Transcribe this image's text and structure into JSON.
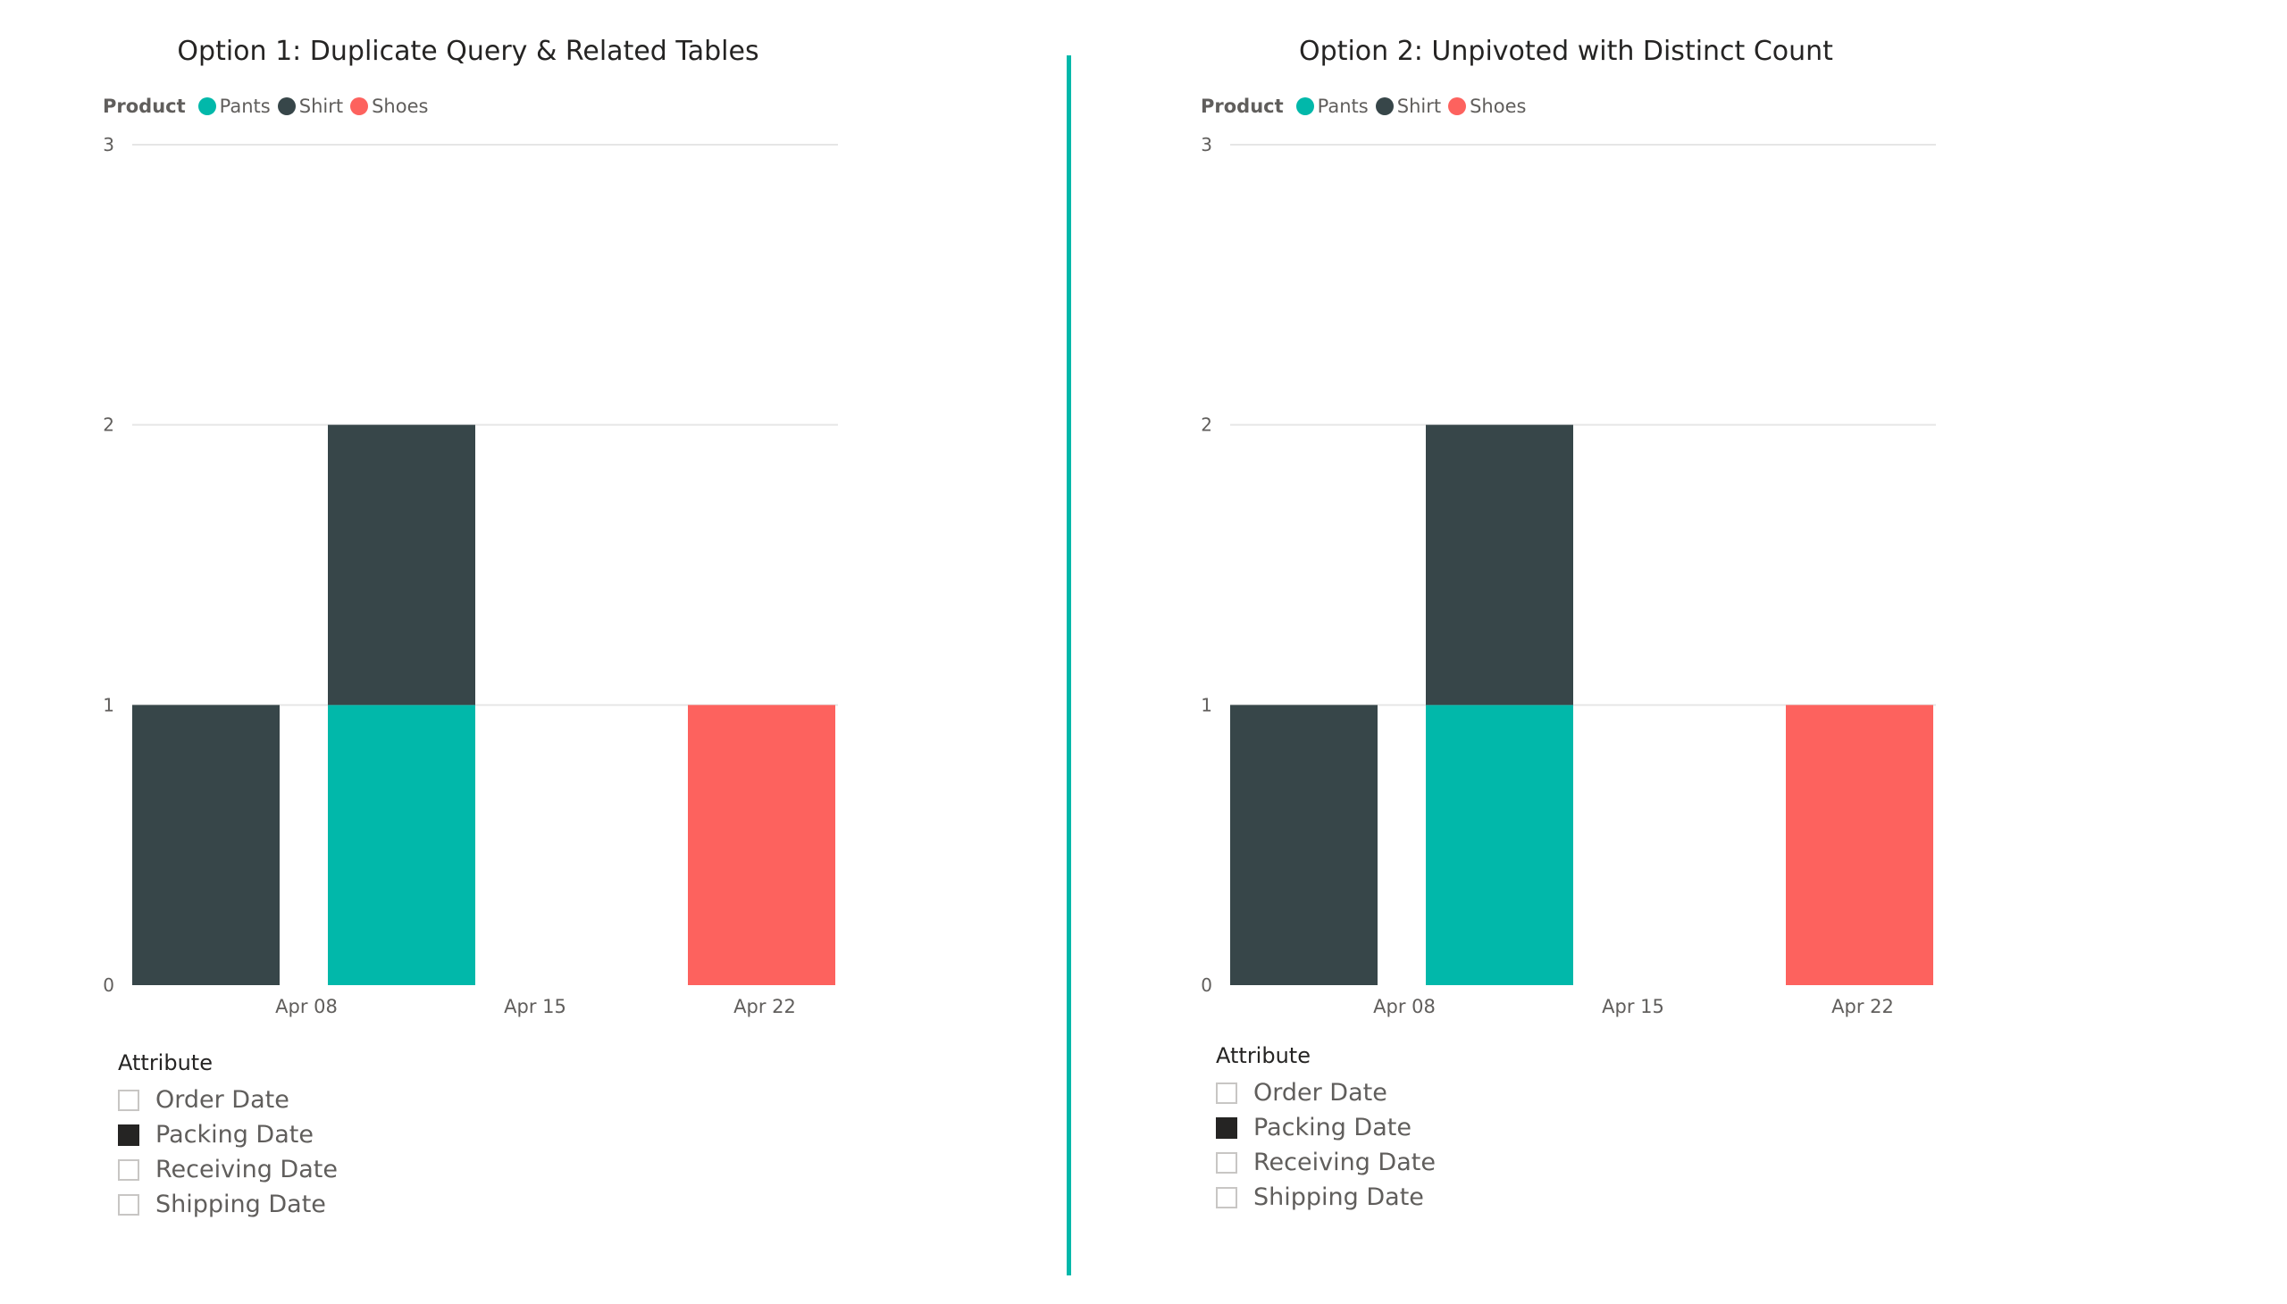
{
  "colors": {
    "Pants": "#01b8aa",
    "Shirt": "#374649",
    "Shoes": "#fd625e",
    "divider": "#01b8aa",
    "gridline": "#e6e6e6",
    "axis_text": "#605e5c"
  },
  "legend": {
    "title": "Product",
    "items": [
      {
        "name": "Pants",
        "color": "#01b8aa"
      },
      {
        "name": "Shirt",
        "color": "#374649"
      },
      {
        "name": "Shoes",
        "color": "#fd625e"
      }
    ]
  },
  "slicer": {
    "title": "Attribute",
    "items": [
      {
        "label": "Order Date",
        "checked": false
      },
      {
        "label": "Packing Date",
        "checked": true
      },
      {
        "label": "Receiving Date",
        "checked": false
      },
      {
        "label": "Shipping Date",
        "checked": false
      }
    ]
  },
  "chart_data": [
    {
      "type": "bar",
      "stacked": true,
      "title": "Option 1: Duplicate Query & Related Tables",
      "ylim": [
        0,
        3
      ],
      "yticks": [
        0,
        1,
        2,
        3
      ],
      "grid": true,
      "legend_position": "top-left",
      "x_ticks": [
        "Apr 08",
        "Apr 15",
        "Apr 22"
      ],
      "bars": [
        {
          "position": 0,
          "segments": [
            {
              "series": "Shirt",
              "value": 1
            }
          ]
        },
        {
          "position": 1,
          "segments": [
            {
              "series": "Pants",
              "value": 1
            },
            {
              "series": "Shirt",
              "value": 1
            }
          ]
        },
        {
          "position": 3,
          "segments": [
            {
              "series": "Shoes",
              "value": 1
            }
          ]
        }
      ]
    },
    {
      "type": "bar",
      "stacked": true,
      "title": "Option 2: Unpivoted with Distinct Count",
      "ylim": [
        0,
        3
      ],
      "yticks": [
        0,
        1,
        2,
        3
      ],
      "grid": true,
      "legend_position": "top-left",
      "x_ticks": [
        "Apr 08",
        "Apr 15",
        "Apr 22"
      ],
      "bars": [
        {
          "position": 0,
          "segments": [
            {
              "series": "Shirt",
              "value": 1
            }
          ]
        },
        {
          "position": 1,
          "segments": [
            {
              "series": "Pants",
              "value": 1
            },
            {
              "series": "Shirt",
              "value": 1
            }
          ]
        },
        {
          "position": 3,
          "segments": [
            {
              "series": "Shoes",
              "value": 1
            }
          ]
        }
      ]
    }
  ]
}
